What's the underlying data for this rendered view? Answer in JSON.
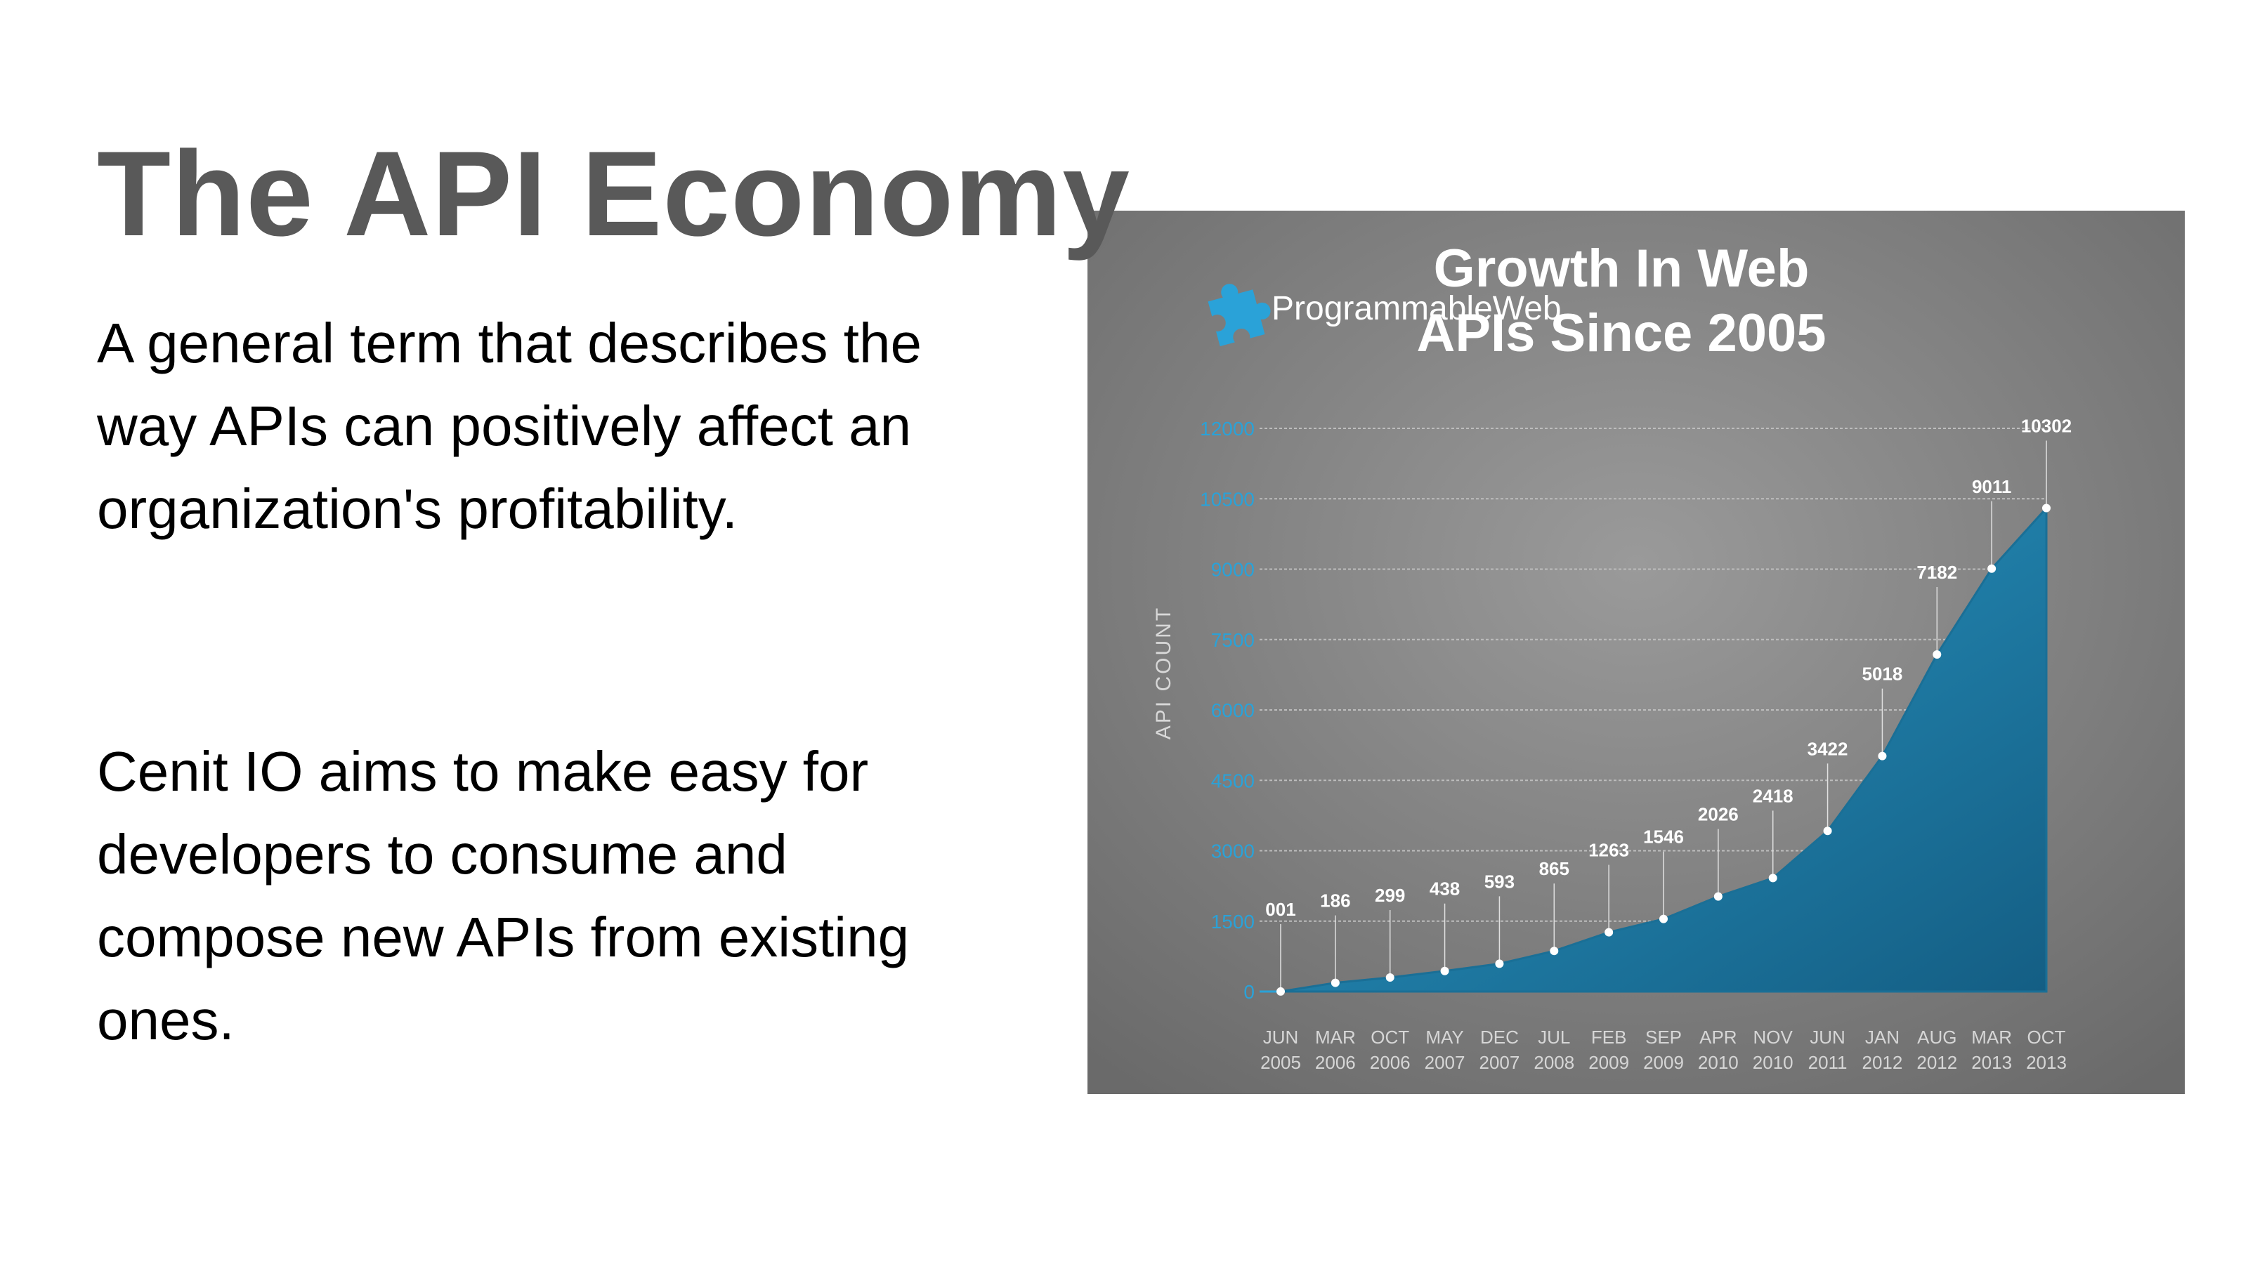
{
  "slide": {
    "title": "The API Economy",
    "paragraphs": [
      "A general term that describes the way APIs can positively affect an organization's profitability.",
      "Cenit IO aims to make easy for developers to consume and compose new APIs from existing ones."
    ]
  },
  "colors": {
    "title": "#595959",
    "text": "#000000",
    "panel_bg": "#7a7a7a",
    "area_fill": "#1b7ba6",
    "axis_ticks": "#2aa2d8",
    "label_text": "#ffffff"
  },
  "chart_data": {
    "type": "area",
    "brand": "ProgrammableWeb",
    "logo_icon": "puzzle-piece-icon",
    "title_lines": [
      "Growth In Web",
      "APIs Since 2005"
    ],
    "ylabel": "API COUNT",
    "ylim": [
      0,
      12000
    ],
    "yticks": [
      0,
      1500,
      3000,
      4500,
      6000,
      7500,
      9000,
      10500,
      12000
    ],
    "grid": true,
    "legend": "none",
    "categories": [
      [
        "JUN",
        "2005"
      ],
      [
        "MAR",
        "2006"
      ],
      [
        "OCT",
        "2006"
      ],
      [
        "MAY",
        "2007"
      ],
      [
        "DEC",
        "2007"
      ],
      [
        "JUL",
        "2008"
      ],
      [
        "FEB",
        "2009"
      ],
      [
        "SEP",
        "2009"
      ],
      [
        "APR",
        "2010"
      ],
      [
        "NOV",
        "2010"
      ],
      [
        "JUN",
        "2011"
      ],
      [
        "JAN",
        "2012"
      ],
      [
        "AUG",
        "2012"
      ],
      [
        "MAR",
        "2013"
      ],
      [
        "OCT",
        "2013"
      ]
    ],
    "values": [
      1,
      186,
      299,
      438,
      593,
      865,
      1263,
      1546,
      2026,
      2418,
      3422,
      5018,
      7182,
      9011,
      10302
    ],
    "value_labels": [
      "001",
      "186",
      "299",
      "438",
      "593",
      "865",
      "1263",
      "1546",
      "2026",
      "2418",
      "3422",
      "5018",
      "7182",
      "9011",
      "10302"
    ]
  }
}
